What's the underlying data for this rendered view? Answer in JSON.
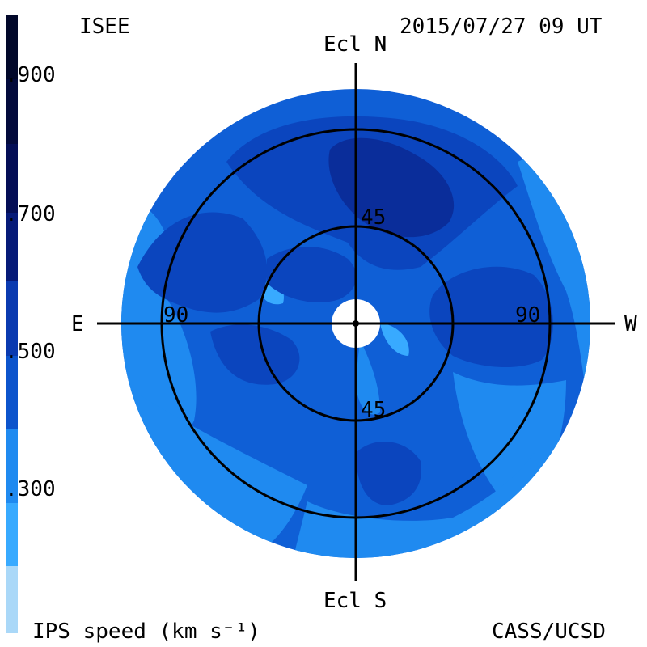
{
  "header": {
    "source": "ISEE",
    "timestamp": "2015/07/27 09 UT"
  },
  "footer": {
    "legend_title": "IPS speed (km s⁻¹)",
    "credit": "CASS/UCSD"
  },
  "directions": {
    "north": "Ecl N",
    "south": "Ecl S",
    "east": "E",
    "west": "W"
  },
  "ring_labels": {
    "inner_top": "45",
    "inner_bottom": "45",
    "outer_left": "90",
    "outer_right": "90"
  },
  "legend": {
    "ticks": [
      ".900",
      ".700",
      ".500",
      ".300"
    ],
    "colors": [
      "#aad8f8",
      "#38aaff",
      "#0a7ae0",
      "#0a5cd6",
      "#0b3fb8",
      "#0a2690",
      "#051060",
      "#02082a"
    ]
  },
  "map_colors": {
    "level_300": "#1f8af0",
    "level_400": "#0f5fd6",
    "level_500": "#0b45be",
    "level_600": "#0a2d9a",
    "level_low": "#38aaff",
    "level_lowest": "#7cc6ff",
    "occulter": "#ffffff",
    "grid": "#000000"
  }
}
